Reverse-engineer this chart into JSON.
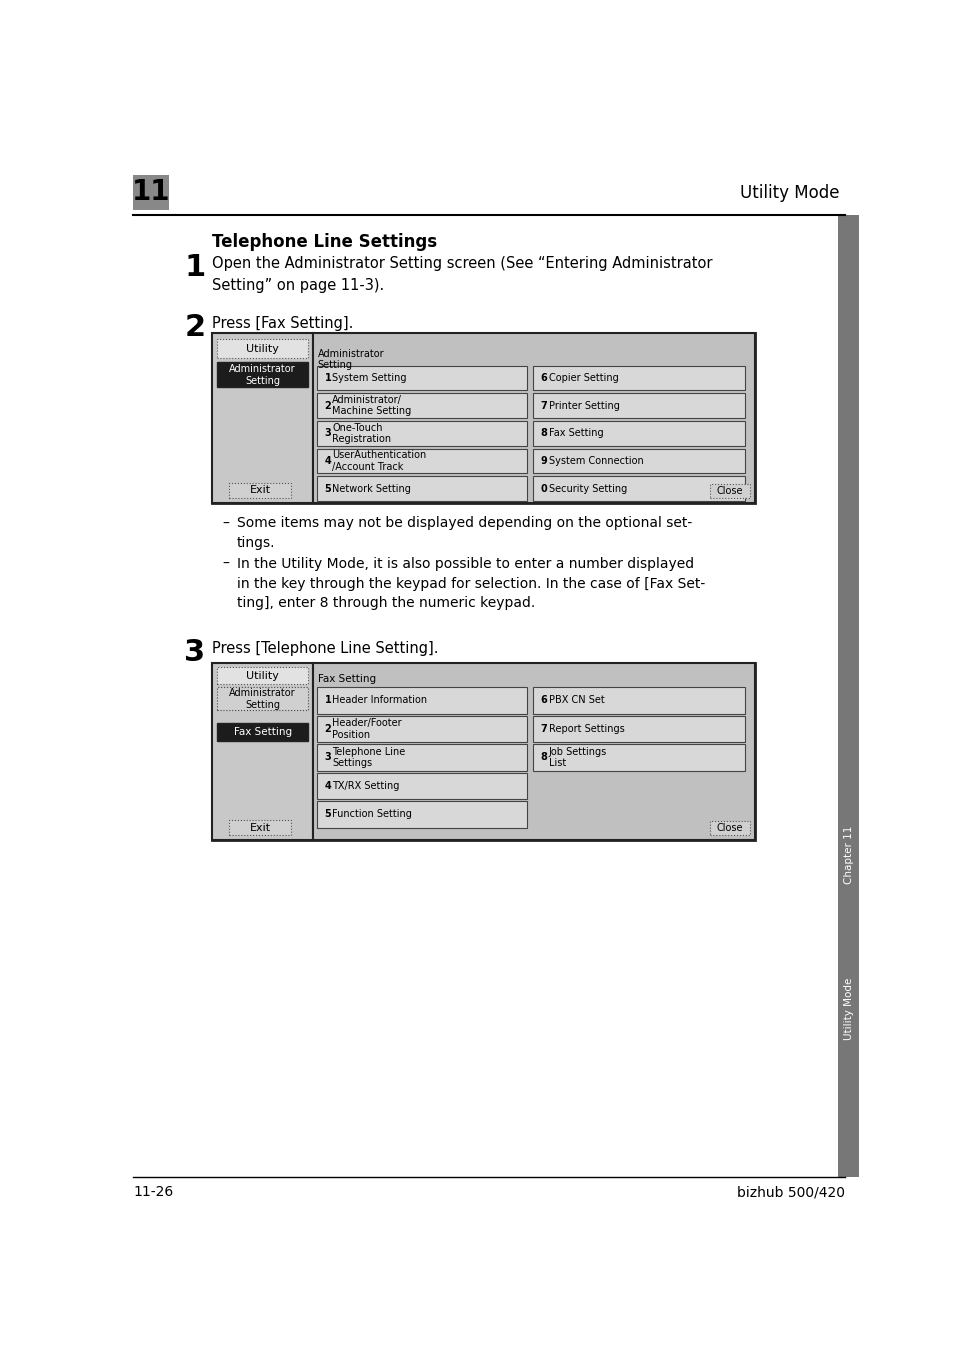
{
  "bg_color": "#ffffff",
  "header_number": "11",
  "header_title": "Utility Mode",
  "footer_left": "11-26",
  "footer_right": "bizhub 500/420",
  "section_title": "Telephone Line Settings",
  "step1_num": "1",
  "step1_text": "Open the Administrator Setting screen (See “Entering Administrator\nSetting” on page 11-3).",
  "step2_num": "2",
  "step2_text": "Press [Fax Setting].",
  "step3_num": "3",
  "step3_text": "Press [Telephone Line Setting].",
  "bullet1": "Some items may not be displayed depending on the optional set-\ntings.",
  "bullet2": "In the Utility Mode, it is also possible to enter a number displayed\nin the key through the keypad for selection. In the case of [Fax Set-\nting], enter 8 through the numeric keypad.",
  "screen1_sidebar_utility": "Utility",
  "screen1_sidebar_active": "Administrator\nSetting",
  "screen1_main_title": "Administrator\nSetting",
  "screen1_buttons_left": [
    [
      "1",
      "System Setting"
    ],
    [
      "2",
      "Administrator/\nMachine Setting"
    ],
    [
      "3",
      "One-Touch\nRegistration"
    ],
    [
      "4",
      "UserAuthentication\n/Account Track"
    ],
    [
      "5",
      "Network Setting"
    ]
  ],
  "screen1_buttons_right": [
    [
      "6",
      "Copier Setting"
    ],
    [
      "7",
      "Printer Setting"
    ],
    [
      "8",
      "Fax Setting"
    ],
    [
      "9",
      "System Connection"
    ],
    [
      "0",
      "Security Setting"
    ]
  ],
  "screen2_sidebar_utility": "Utility",
  "screen2_sidebar_admin": "Administrator\nSetting",
  "screen2_sidebar_fax": "Fax Setting",
  "screen2_main_title": "Fax Setting",
  "screen2_buttons_left": [
    [
      "1",
      "Header Information"
    ],
    [
      "2",
      "Header/Footer\nPosition"
    ],
    [
      "3",
      "Telephone Line\nSettings"
    ],
    [
      "4",
      "TX/RX Setting"
    ],
    [
      "5",
      "Function Setting"
    ]
  ],
  "screen2_buttons_right": [
    [
      "6",
      "PBX CN Set"
    ],
    [
      "7",
      "Report Settings"
    ],
    [
      "8",
      "Job Settings\nList"
    ],
    [
      "",
      ""
    ],
    [
      "",
      ""
    ]
  ],
  "chapter_label": "Chapter 11",
  "mode_label": "Utility Mode"
}
